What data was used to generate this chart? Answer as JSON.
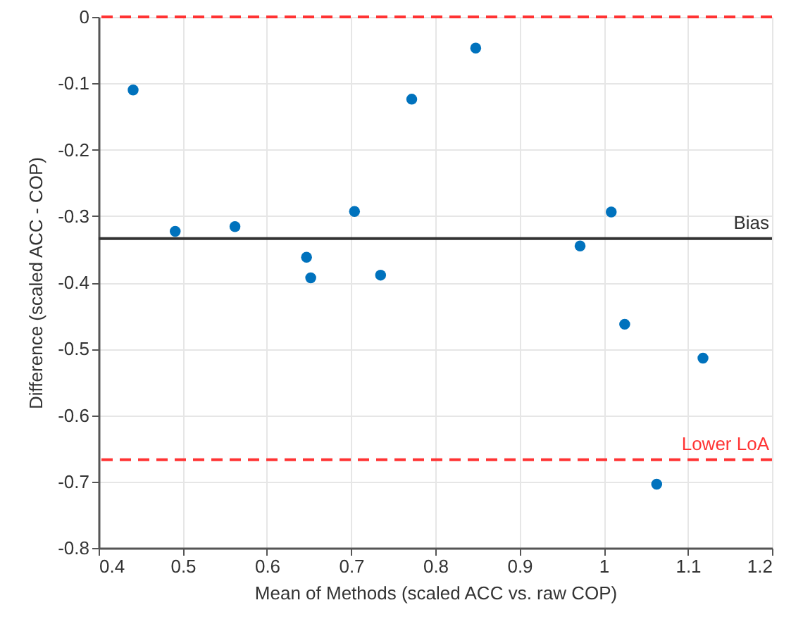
{
  "chart_data": {
    "type": "scatter",
    "xlabel": "Mean of Methods (scaled ACC vs. raw COP)",
    "ylabel": "Difference (scaled ACC - COP)",
    "x": [
      0.441,
      0.491,
      0.562,
      0.647,
      0.652,
      0.704,
      0.735,
      0.772,
      0.848,
      0.972,
      1.009,
      1.025,
      1.063,
      1.118
    ],
    "series": [
      {
        "color": "#0072bd",
        "values": [
          -0.11,
          -0.323,
          -0.316,
          -0.362,
          -0.393,
          -0.293,
          -0.389,
          -0.124,
          -0.047,
          -0.345,
          -0.294,
          -0.463,
          -0.704,
          -0.514
        ]
      }
    ],
    "xlim": [
      0.4,
      1.2
    ],
    "xticks": [
      0.4,
      0.5,
      0.6,
      0.7,
      0.8,
      0.9,
      1,
      1.1,
      1.2
    ],
    "ylim": [
      -0.8,
      0
    ],
    "yticks": [
      -0.8,
      -0.7,
      -0.6,
      -0.5,
      -0.4,
      -0.3,
      -0.2,
      -0.1,
      0
    ],
    "ref_lines": [
      {
        "axis": "y",
        "value": 0,
        "label": null,
        "color": "#ff3333",
        "line_style": "dashed"
      },
      {
        "axis": "y",
        "value": -0.334,
        "label": "Bias",
        "color": "#333333",
        "line_style": "solid"
      },
      {
        "axis": "y",
        "value": -0.667,
        "label": "Lower LoA",
        "color": "#ff3333",
        "line_style": "dashed"
      }
    ],
    "grid": true,
    "marker": "circle"
  }
}
